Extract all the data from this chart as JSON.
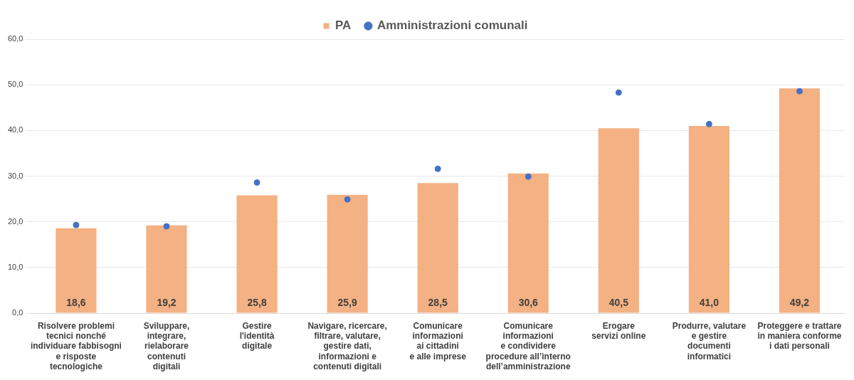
{
  "chart_data": {
    "type": "bar",
    "categories": [
      "Risolvere problemi\ntecnici nonché\nindividuare fabbisogni\ne risposte\ntecnologiche",
      "Sviluppare,\nintegrare,\nrielaborare\ncontenuti\ndigitali",
      "Gestire\nl'identità\ndigitale",
      "Navigare, ricercare,\nfiltrare, valutare,\ngestire dati,\ninformazioni e\ncontenuti digitali",
      "Comunicare\ninformazioni\nai cittadini\ne alle imprese",
      "Comunicare\ninformazioni\ne condividere\nprocedure all’interno\ndell’amministrazione",
      "Erogare\nservizi online",
      "Produrre, valutare\ne gestire\ndocumenti\ninformatici",
      "Proteggere e trattare\nin maniera conforme\ni dati personali"
    ],
    "series": [
      {
        "name": "PA",
        "color": "#f4b183",
        "values": [
          18.6,
          19.2,
          25.8,
          25.9,
          28.5,
          30.6,
          40.5,
          41.0,
          49.2
        ],
        "value_labels": [
          "18,6",
          "19,2",
          "25,8",
          "25,9",
          "28,5",
          "30,6",
          "40,5",
          "41,0",
          "49,2"
        ]
      },
      {
        "name": "Amministrazioni comunali",
        "type": "scatter",
        "color": "#4472c4",
        "marker": "circle",
        "values": [
          19.3,
          19.0,
          28.6,
          24.9,
          31.6,
          29.9,
          48.3,
          41.4,
          48.6
        ]
      }
    ],
    "ylim": [
      0,
      60
    ],
    "yticks": [
      {
        "value": 0,
        "label": "0,0"
      },
      {
        "value": 10,
        "label": "10,0"
      },
      {
        "value": 20,
        "label": "20,0"
      },
      {
        "value": 30,
        "label": "30,0"
      },
      {
        "value": 40,
        "label": "40,0"
      },
      {
        "value": 50,
        "label": "50,0"
      },
      {
        "value": 60,
        "label": "60,0"
      }
    ],
    "grid": "y",
    "legend": "top"
  }
}
